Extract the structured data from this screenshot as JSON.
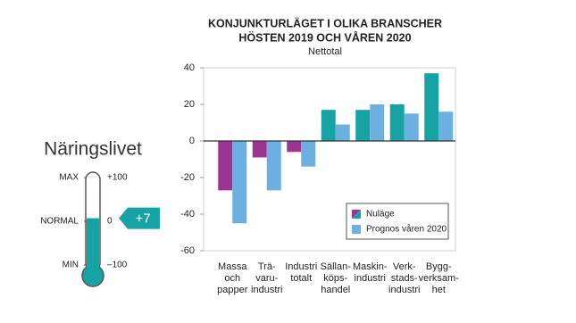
{
  "chart_data": {
    "type": "bar",
    "title": [
      "KONJUNKTURLÄGET I OLIKA BRANSCHER",
      "HÖSTEN 2019 OCH VÅREN 2020"
    ],
    "subtitle": "Nettotal",
    "categories": [
      [
        "Massa",
        "och",
        "papper"
      ],
      [
        "Trä-",
        "varu-",
        "industri"
      ],
      [
        "Industri",
        "totalt"
      ],
      [
        "Sällan-",
        "köps-",
        "handel"
      ],
      [
        "Maskin-",
        "industri"
      ],
      [
        "Verk-",
        "stads-",
        "industri"
      ],
      [
        "Bygg-",
        "verksam-",
        "het"
      ]
    ],
    "series": [
      {
        "name": "Nuläge",
        "color": "#17a2a4",
        "negative_color": "#9c3591",
        "values": [
          -27,
          -9,
          -6,
          17,
          17,
          20,
          37
        ]
      },
      {
        "name": "Prognos våren 2020",
        "color": "#6cb0e2",
        "values": [
          -45,
          -27,
          -14,
          9,
          20,
          15,
          16
        ]
      }
    ],
    "ylim": [
      -60,
      40
    ],
    "yticks": [
      -60,
      -40,
      -20,
      0,
      20,
      40
    ],
    "legend": "lower right"
  },
  "thermometer": {
    "title": "Näringslivet",
    "value": 7,
    "value_label": "+7",
    "lim": [
      -100,
      100
    ],
    "levels": [
      {
        "name": "MAX",
        "tick": {
          "value": 100,
          "label": "+100"
        }
      },
      {
        "name": "NORMAL",
        "tick": 0
      },
      {
        "name": "MIN",
        "tick": {
          "value": -100,
          "label": "–100"
        }
      }
    ],
    "color": "#17a2a4"
  }
}
